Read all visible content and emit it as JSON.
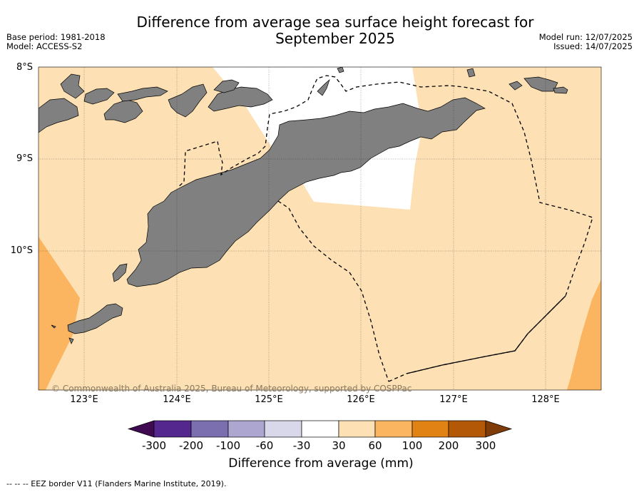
{
  "title_line1": "Difference from average sea surface height forecast for",
  "title_line2": "September 2025",
  "meta_left": {
    "base_period": "Base period: 1981-2018",
    "model": "Model: ACCESS-S2"
  },
  "meta_right": {
    "model_run": "Model run: 12/07/2025",
    "issued": "Issued: 14/07/2025"
  },
  "lat_labels": [
    "8°S",
    "9°S",
    "10°S"
  ],
  "lon_labels": [
    "123°E",
    "124°E",
    "125°E",
    "126°E",
    "127°E",
    "128°E"
  ],
  "copyright": "© Commonwealth of Australia 2025, Bureau of Meteorology, supported by COSPPac",
  "colorbar": {
    "title": "Difference from average (mm)",
    "ticks": [
      "-300",
      "-200",
      "-100",
      "-60",
      "-30",
      "30",
      "60",
      "100",
      "200",
      "300"
    ],
    "colors": [
      "#3f0a52",
      "#54278f",
      "#7b6fb0",
      "#ada6d0",
      "#d8d8ea",
      "#ffffff",
      "#fde0b4",
      "#fbb45f",
      "#e08214",
      "#b35806",
      "#7f3b08"
    ]
  },
  "colors": {
    "land": "#808080",
    "fill_30_60": "#fde0b4",
    "fill_60_100": "#fbb45f",
    "fill_neutral": "#ffffff"
  },
  "footer": "--  --  -- EEZ border V11 (Flanders Marine Institute, 2019)."
}
